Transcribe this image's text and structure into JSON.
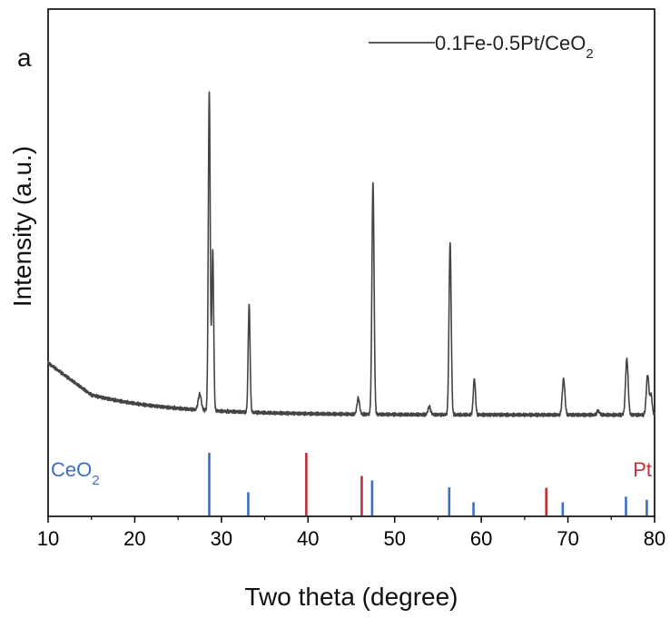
{
  "chart_data": {
    "type": "line",
    "panel_label": "a",
    "xlabel": "Two theta (degree)",
    "ylabel": "Intensity (a.u.)",
    "xlim": [
      10,
      80
    ],
    "x_ticks": [
      10,
      20,
      30,
      40,
      50,
      60,
      70,
      80
    ],
    "series": [
      {
        "name": "0.1Fe-0.5Pt/CeO",
        "name_subscript": "2",
        "color": "#444444",
        "baseline": {
          "start": 0.2,
          "at15": 0.12,
          "floor": 0.07
        },
        "peaks": [
          {
            "x": 27.5,
            "height": 0.04,
            "width": 0.35
          },
          {
            "x": 28.6,
            "height": 0.8,
            "width": 0.22
          },
          {
            "x": 29.0,
            "height": 0.4,
            "width": 0.22
          },
          {
            "x": 33.2,
            "height": 0.27,
            "width": 0.22
          },
          {
            "x": 45.8,
            "height": 0.04,
            "width": 0.3
          },
          {
            "x": 47.5,
            "height": 0.58,
            "width": 0.25
          },
          {
            "x": 54.0,
            "height": 0.02,
            "width": 0.3
          },
          {
            "x": 56.4,
            "height": 0.43,
            "width": 0.25
          },
          {
            "x": 59.2,
            "height": 0.09,
            "width": 0.25
          },
          {
            "x": 69.5,
            "height": 0.09,
            "width": 0.3
          },
          {
            "x": 73.5,
            "height": 0.01,
            "width": 0.3
          },
          {
            "x": 76.8,
            "height": 0.14,
            "width": 0.3
          },
          {
            "x": 79.2,
            "height": 0.1,
            "width": 0.3
          },
          {
            "x": 79.6,
            "height": 0.05,
            "width": 0.25
          }
        ]
      }
    ],
    "references": [
      {
        "name": "CeO",
        "name_subscript": "2",
        "color": "#3a6fc4",
        "lines": [
          {
            "x": 28.6,
            "height": 1.0
          },
          {
            "x": 33.1,
            "height": 0.37
          },
          {
            "x": 47.4,
            "height": 0.56
          },
          {
            "x": 56.3,
            "height": 0.45
          },
          {
            "x": 59.1,
            "height": 0.21
          },
          {
            "x": 69.4,
            "height": 0.21
          },
          {
            "x": 76.7,
            "height": 0.3
          },
          {
            "x": 79.1,
            "height": 0.25
          }
        ]
      },
      {
        "name": "Pt",
        "name_subscript": "",
        "color": "#c0303a",
        "lines": [
          {
            "x": 39.8,
            "height": 1.0
          },
          {
            "x": 46.2,
            "height": 0.63
          },
          {
            "x": 67.5,
            "height": 0.44
          }
        ]
      }
    ]
  }
}
